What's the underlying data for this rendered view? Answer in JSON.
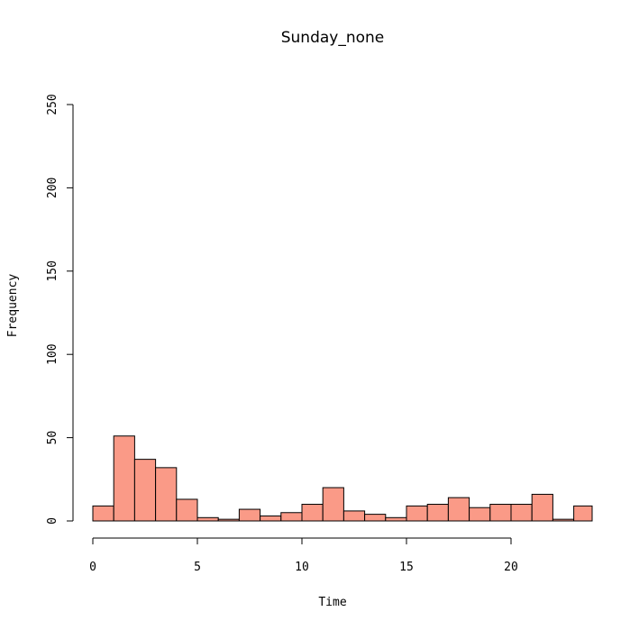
{
  "chart_data": {
    "type": "bar",
    "title": "Sunday_none",
    "xlabel": "Time",
    "ylabel": "Frequency",
    "xlim": [
      0,
      24
    ],
    "ylim": [
      0,
      250
    ],
    "bin_width": 1,
    "bins": [
      {
        "start": 0,
        "end": 1,
        "value": 9
      },
      {
        "start": 1,
        "end": 2,
        "value": 51
      },
      {
        "start": 2,
        "end": 3,
        "value": 37
      },
      {
        "start": 3,
        "end": 4,
        "value": 32
      },
      {
        "start": 4,
        "end": 5,
        "value": 13
      },
      {
        "start": 5,
        "end": 6,
        "value": 2
      },
      {
        "start": 6,
        "end": 7,
        "value": 1
      },
      {
        "start": 7,
        "end": 8,
        "value": 7
      },
      {
        "start": 8,
        "end": 9,
        "value": 3
      },
      {
        "start": 9,
        "end": 10,
        "value": 5
      },
      {
        "start": 10,
        "end": 11,
        "value": 10
      },
      {
        "start": 11,
        "end": 12,
        "value": 20
      },
      {
        "start": 12,
        "end": 13,
        "value": 6
      },
      {
        "start": 13,
        "end": 14,
        "value": 4
      },
      {
        "start": 14,
        "end": 15,
        "value": 2
      },
      {
        "start": 15,
        "end": 16,
        "value": 9
      },
      {
        "start": 16,
        "end": 17,
        "value": 10
      },
      {
        "start": 17,
        "end": 18,
        "value": 14
      },
      {
        "start": 18,
        "end": 19,
        "value": 8
      },
      {
        "start": 19,
        "end": 20,
        "value": 10
      },
      {
        "start": 20,
        "end": 21,
        "value": 10
      },
      {
        "start": 21,
        "end": 22,
        "value": 16
      },
      {
        "start": 22,
        "end": 23,
        "value": 1
      },
      {
        "start": 23,
        "end": 24,
        "value": 9
      }
    ],
    "x_ticks": [
      {
        "value": 0,
        "label": "0"
      },
      {
        "value": 5,
        "label": "5"
      },
      {
        "value": 10,
        "label": "10"
      },
      {
        "value": 15,
        "label": "15"
      },
      {
        "value": 20,
        "label": "20"
      }
    ],
    "y_ticks": [
      {
        "value": 0,
        "label": "0"
      },
      {
        "value": 50,
        "label": "50"
      },
      {
        "value": 100,
        "label": "100"
      },
      {
        "value": 150,
        "label": "150"
      },
      {
        "value": 200,
        "label": "200"
      },
      {
        "value": 250,
        "label": "250"
      }
    ],
    "bar_color": "#FA9A87",
    "grid": false,
    "legend": "none"
  }
}
